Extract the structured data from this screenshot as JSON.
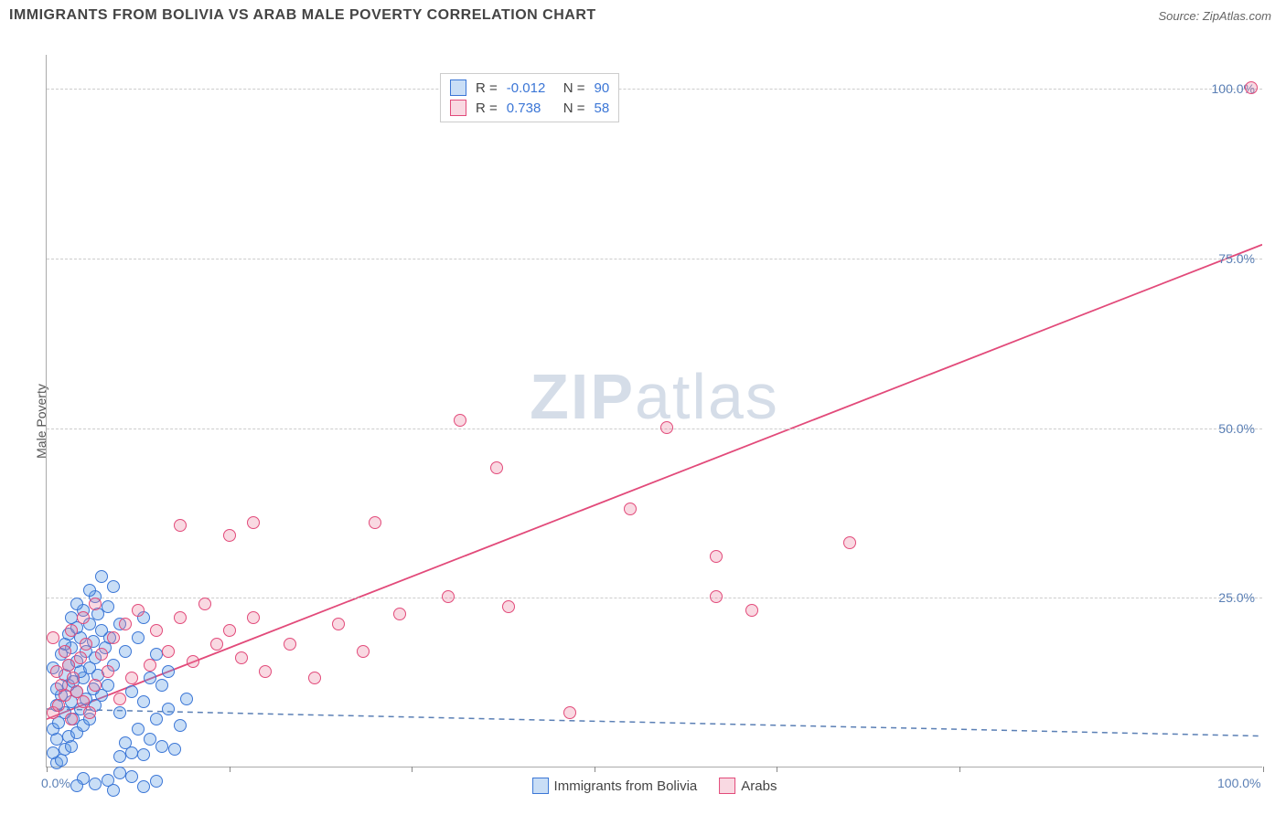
{
  "title": "IMMIGRANTS FROM BOLIVIA VS ARAB MALE POVERTY CORRELATION CHART",
  "source": "Source: ZipAtlas.com",
  "ylabel": "Male Poverty",
  "watermark": {
    "bold": "ZIP",
    "rest": "atlas"
  },
  "chart": {
    "type": "scatter",
    "xlim": [
      0,
      100
    ],
    "ylim": [
      0,
      105
    ],
    "background_color": "#ffffff",
    "grid_color": "#cccccc",
    "grid_dash": "4,4",
    "axis_color": "#aaaaaa",
    "marker_radius": 7,
    "marker_stroke_width": 1.5,
    "ytick_values": [
      25,
      50,
      75,
      100
    ],
    "ytick_labels": [
      "25.0%",
      "50.0%",
      "75.0%",
      "100.0%"
    ],
    "xtick_values": [
      0,
      15,
      30,
      45,
      60,
      75,
      100
    ],
    "xtick_visible_labels": {
      "0": "0.0%",
      "100": "100.0%"
    },
    "tick_label_color": "#5a7fb5",
    "tick_label_fontsize": 14,
    "series": [
      {
        "name": "Immigrants from Bolivia",
        "color_fill": "rgba(100,160,230,0.35)",
        "color_stroke": "#3b76d6",
        "trend": {
          "x1": 0,
          "y1": 8.5,
          "x2": 100,
          "y2": 4.5,
          "dash": "6,5",
          "width": 1.5,
          "color": "#5a7fb5"
        },
        "points": [
          [
            0.8,
            0.5
          ],
          [
            1.2,
            1
          ],
          [
            0.5,
            2
          ],
          [
            1.5,
            2.5
          ],
          [
            2,
            3
          ],
          [
            0.8,
            4
          ],
          [
            1.8,
            4.5
          ],
          [
            2.5,
            5
          ],
          [
            0.5,
            5.5
          ],
          [
            3,
            6
          ],
          [
            1,
            6.5
          ],
          [
            2.2,
            7
          ],
          [
            3.5,
            7
          ],
          [
            1.5,
            8
          ],
          [
            2.8,
            8.5
          ],
          [
            0.8,
            9
          ],
          [
            4,
            9
          ],
          [
            2,
            9.5
          ],
          [
            3.2,
            10
          ],
          [
            1.2,
            10.5
          ],
          [
            4.5,
            10.5
          ],
          [
            2.5,
            11
          ],
          [
            0.8,
            11.5
          ],
          [
            3.8,
            11.5
          ],
          [
            1.8,
            12
          ],
          [
            5,
            12
          ],
          [
            2.2,
            12.5
          ],
          [
            3,
            13
          ],
          [
            1.5,
            13.5
          ],
          [
            4.2,
            13.5
          ],
          [
            2.8,
            14
          ],
          [
            0.5,
            14.5
          ],
          [
            3.5,
            14.5
          ],
          [
            1.8,
            15
          ],
          [
            5.5,
            15
          ],
          [
            2.5,
            15.5
          ],
          [
            4,
            16
          ],
          [
            1.2,
            16.5
          ],
          [
            3.2,
            17
          ],
          [
            2,
            17.5
          ],
          [
            4.8,
            17.5
          ],
          [
            1.5,
            18
          ],
          [
            3.8,
            18.5
          ],
          [
            2.8,
            19
          ],
          [
            5.2,
            19
          ],
          [
            1.8,
            19.5
          ],
          [
            4.5,
            20
          ],
          [
            2.5,
            20.5
          ],
          [
            3.5,
            21
          ],
          [
            6,
            21
          ],
          [
            2,
            22
          ],
          [
            4.2,
            22.5
          ],
          [
            3,
            23
          ],
          [
            5,
            23.5
          ],
          [
            2.5,
            24
          ],
          [
            4,
            25
          ],
          [
            3.5,
            26
          ],
          [
            5.5,
            26.5
          ],
          [
            4.5,
            28
          ],
          [
            6,
            1.5
          ],
          [
            7,
            2
          ],
          [
            8,
            1.8
          ],
          [
            6.5,
            3.5
          ],
          [
            8.5,
            4
          ],
          [
            7.5,
            5.5
          ],
          [
            9.5,
            3
          ],
          [
            10.5,
            2.5
          ],
          [
            6,
            8
          ],
          [
            8,
            9.5
          ],
          [
            9,
            7
          ],
          [
            7,
            11
          ],
          [
            10,
            8.5
          ],
          [
            11,
            6
          ],
          [
            8.5,
            13
          ],
          [
            9.5,
            12
          ],
          [
            6.5,
            17
          ],
          [
            7.5,
            19
          ],
          [
            9,
            16.5
          ],
          [
            10,
            14
          ],
          [
            8,
            22
          ],
          [
            11.5,
            10
          ],
          [
            6,
            -1
          ],
          [
            5,
            -2
          ],
          [
            7,
            -1.5
          ],
          [
            4,
            -2.5
          ],
          [
            8,
            -3
          ],
          [
            3,
            -1.8
          ],
          [
            9,
            -2.2
          ],
          [
            5.5,
            -3.5
          ],
          [
            2.5,
            -2.8
          ]
        ]
      },
      {
        "name": "Arabs",
        "color_fill": "rgba(235,130,160,0.30)",
        "color_stroke": "#e24a7a",
        "trend": {
          "x1": 0,
          "y1": 7,
          "x2": 100,
          "y2": 77,
          "dash": "none",
          "width": 1.8,
          "color": "#e24a7a"
        },
        "points": [
          [
            0.5,
            8
          ],
          [
            1,
            9
          ],
          [
            1.5,
            10.5
          ],
          [
            2,
            7
          ],
          [
            1.2,
            12
          ],
          [
            2.5,
            11
          ],
          [
            0.8,
            14
          ],
          [
            3,
            9.5
          ],
          [
            1.8,
            15
          ],
          [
            2.2,
            13
          ],
          [
            3.5,
            8
          ],
          [
            1.5,
            17
          ],
          [
            4,
            12
          ],
          [
            2.8,
            16
          ],
          [
            0.5,
            19
          ],
          [
            5,
            14
          ],
          [
            3.2,
            18
          ],
          [
            6,
            10
          ],
          [
            4.5,
            16.5
          ],
          [
            2,
            20
          ],
          [
            7,
            13
          ],
          [
            5.5,
            19
          ],
          [
            3,
            22
          ],
          [
            8.5,
            15
          ],
          [
            6.5,
            21
          ],
          [
            4,
            24
          ],
          [
            10,
            17
          ],
          [
            7.5,
            23
          ],
          [
            12,
            15.5
          ],
          [
            9,
            20
          ],
          [
            14,
            18
          ],
          [
            11,
            22
          ],
          [
            16,
            16
          ],
          [
            13,
            24
          ],
          [
            18,
            14
          ],
          [
            15,
            20
          ],
          [
            20,
            18
          ],
          [
            17,
            22
          ],
          [
            22,
            13
          ],
          [
            24,
            21
          ],
          [
            26,
            17
          ],
          [
            29,
            22.5
          ],
          [
            33,
            25
          ],
          [
            38,
            23.5
          ],
          [
            43,
            8
          ],
          [
            11,
            35.5
          ],
          [
            17,
            36
          ],
          [
            15,
            34
          ],
          [
            27,
            36
          ],
          [
            34,
            51
          ],
          [
            37,
            44
          ],
          [
            48,
            38
          ],
          [
            51,
            50
          ],
          [
            55,
            31
          ],
          [
            55,
            25
          ],
          [
            58,
            23
          ],
          [
            66,
            33
          ],
          [
            99,
            100
          ]
        ]
      }
    ]
  },
  "legend_top": {
    "rows": [
      {
        "swatch_fill": "rgba(100,160,230,0.35)",
        "swatch_stroke": "#3b76d6",
        "r_label": "R =",
        "r_value": "-0.012",
        "n_label": "N =",
        "n_value": "90"
      },
      {
        "swatch_fill": "rgba(235,130,160,0.30)",
        "swatch_stroke": "#e24a7a",
        "r_label": "R =",
        "r_value": "0.738",
        "n_label": "N =",
        "n_value": "58"
      }
    ]
  },
  "legend_bottom": {
    "items": [
      {
        "swatch_fill": "rgba(100,160,230,0.35)",
        "swatch_stroke": "#3b76d6",
        "label": "Immigrants from Bolivia"
      },
      {
        "swatch_fill": "rgba(235,130,160,0.30)",
        "swatch_stroke": "#e24a7a",
        "label": "Arabs"
      }
    ]
  }
}
